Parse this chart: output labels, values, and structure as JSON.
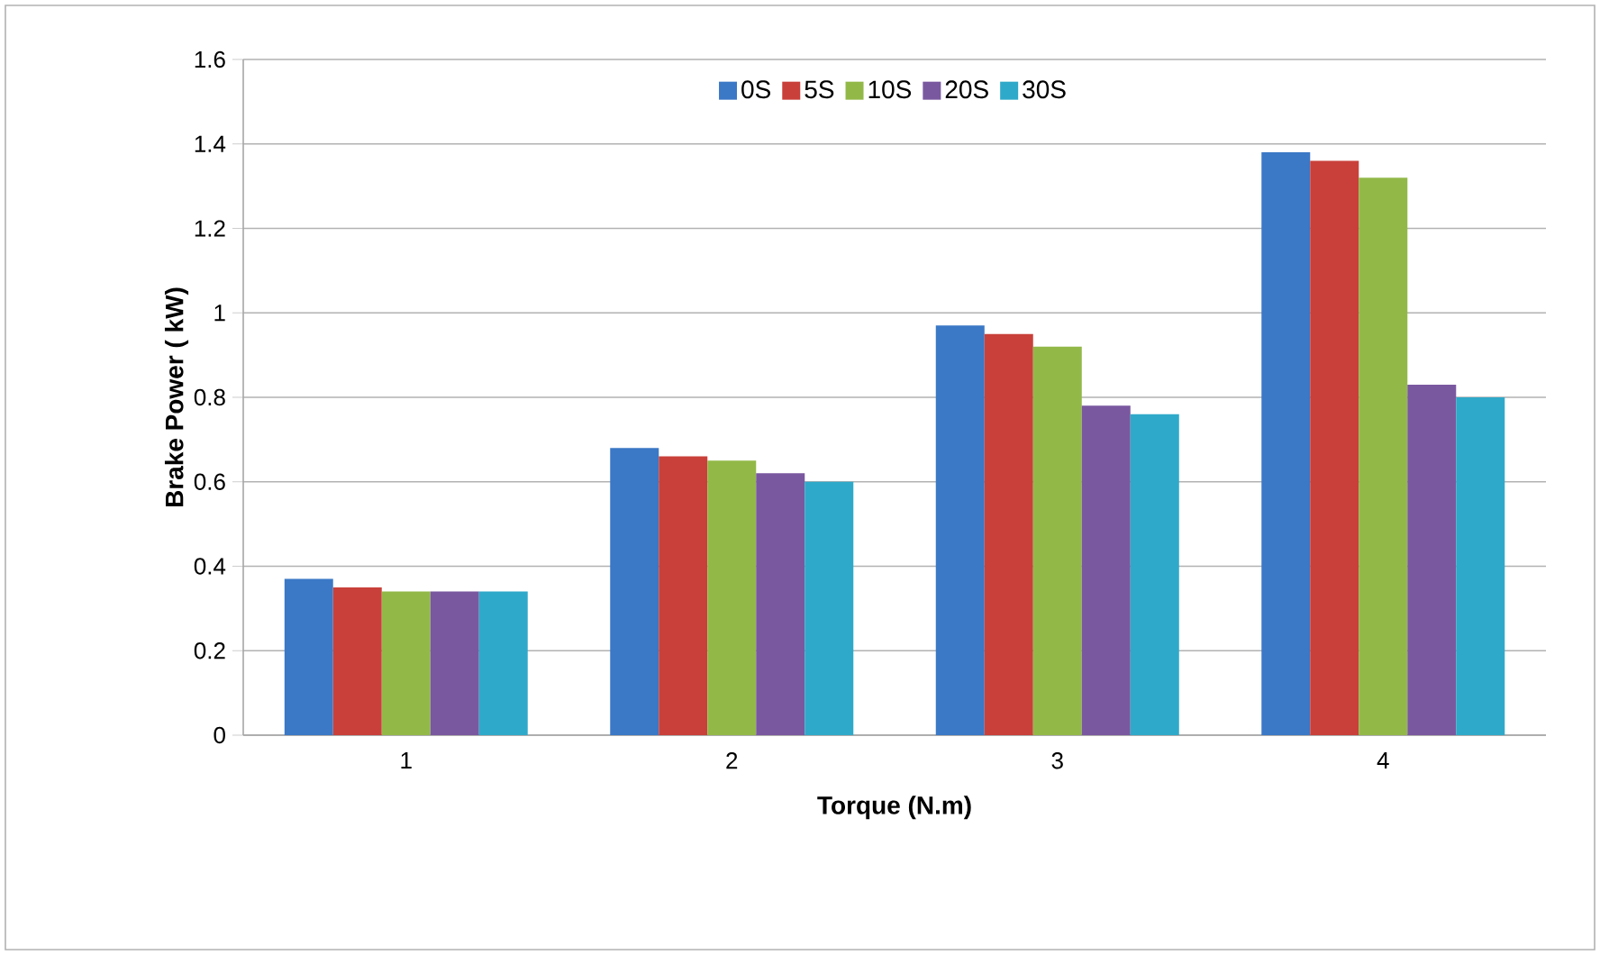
{
  "chart_data": {
    "type": "bar",
    "xlabel": "Torque (N.m)",
    "ylabel": "Brake Power ( kW)",
    "categories": [
      "1",
      "2",
      "3",
      "4"
    ],
    "series": [
      {
        "name": "0S",
        "color": "#3b78c6",
        "values": [
          0.37,
          0.68,
          0.97,
          1.38
        ]
      },
      {
        "name": "5S",
        "color": "#c9403a",
        "values": [
          0.35,
          0.66,
          0.95,
          1.36
        ]
      },
      {
        "name": "10S",
        "color": "#92b948",
        "values": [
          0.34,
          0.65,
          0.92,
          1.32
        ]
      },
      {
        "name": "20S",
        "color": "#7a58a0",
        "values": [
          0.34,
          0.62,
          0.78,
          0.83
        ]
      },
      {
        "name": "30S",
        "color": "#2fa9c9",
        "values": [
          0.34,
          0.6,
          0.76,
          0.8
        ]
      }
    ],
    "ylim": [
      0,
      1.6
    ],
    "yticks": [
      0,
      0.2,
      0.4,
      0.6,
      0.8,
      1,
      1.2,
      1.4,
      1.6
    ],
    "grid": "y",
    "legend": "top"
  }
}
